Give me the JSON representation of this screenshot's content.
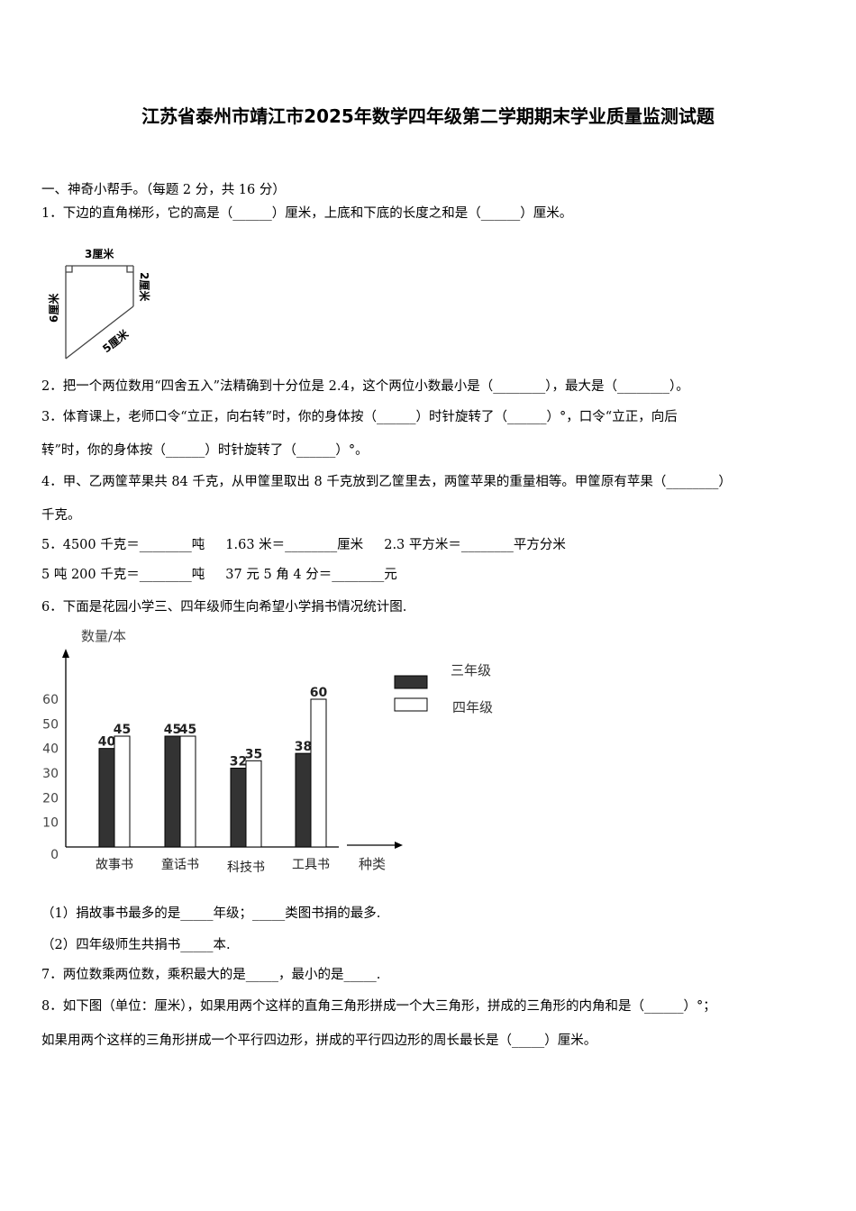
{
  "title": "江苏省泰州市靖江市2025年数学四年级第二学期期末学业质量监测试题",
  "section1": "一、神奇小帮手。（每题 2 分，共 16 分）",
  "q1": "1．下边的直角梯形，它的高是（______）厘米，上底和下底的长度之和是（______）厘米。",
  "figure1": {
    "top": "3厘米",
    "left": "6厘米",
    "right": "2厘米",
    "slant": "5厘米"
  },
  "q2": "2．把一个两位数用“四舍五入”法精确到十分位是 2.4，这个两位小数最小是（________），最大是（________）。",
  "q3_line1": "3．体育课上，老师口令“立正，向右转”时，你的身体按（______）时针旋转了（______）°，口令“立正，向后",
  "q3_line2": "转”时，你的身体按（______）时针旋转了（______）°。",
  "q4_line1": "4．甲、乙两筐苹果共 84 千克，从甲筐里取出 8 千克放到乙筐里去，两筐苹果的重量相等。甲筐原有苹果（________）",
  "q4_line2": "千克。",
  "q5_line1": "5．4500 千克＝________吨     1.63 米＝________厘米     2.3 平方米＝________平方分米",
  "q5_line2": "5 吨 200 千克＝________吨     37 元 5 角 4 分＝________元",
  "q6": "6．下面是花园小学三、四年级师生向希望小学捐书情况统计图.",
  "chart_data": {
    "type": "bar",
    "ylabel": "数量/本",
    "xlabel": "种类",
    "categories": [
      "故事书",
      "童话书",
      "科技书",
      "工具书"
    ],
    "yticks": [
      "0",
      "10",
      "20",
      "30",
      "40",
      "50",
      "60"
    ],
    "ylim": [
      0,
      60
    ],
    "legend_position": "top-right",
    "series": [
      {
        "name": "三年级",
        "color": "#333333",
        "values": [
          40,
          45,
          32,
          38
        ]
      },
      {
        "name": "四年级",
        "color": "#ffffff",
        "values": [
          45,
          45,
          35,
          60
        ]
      }
    ]
  },
  "q6_sub1": "（1）捐故事书最多的是_____年级；_____类图书捐的最多.",
  "q6_sub2": "（2）四年级师生共捐书_____本.",
  "q7": "7．两位数乘两位数，乘积最大的是_____，最小的是_____.",
  "q8_line1": "8．如下图（单位：厘米），如果用两个这样的直角三角形拼成一个大三角形，拼成的三角形的内角和是（______）°；",
  "q8_line2": "如果用两个这样的三角形拼成一个平行四边形，拼成的平行四边形的周长最长是（_____）厘米。"
}
